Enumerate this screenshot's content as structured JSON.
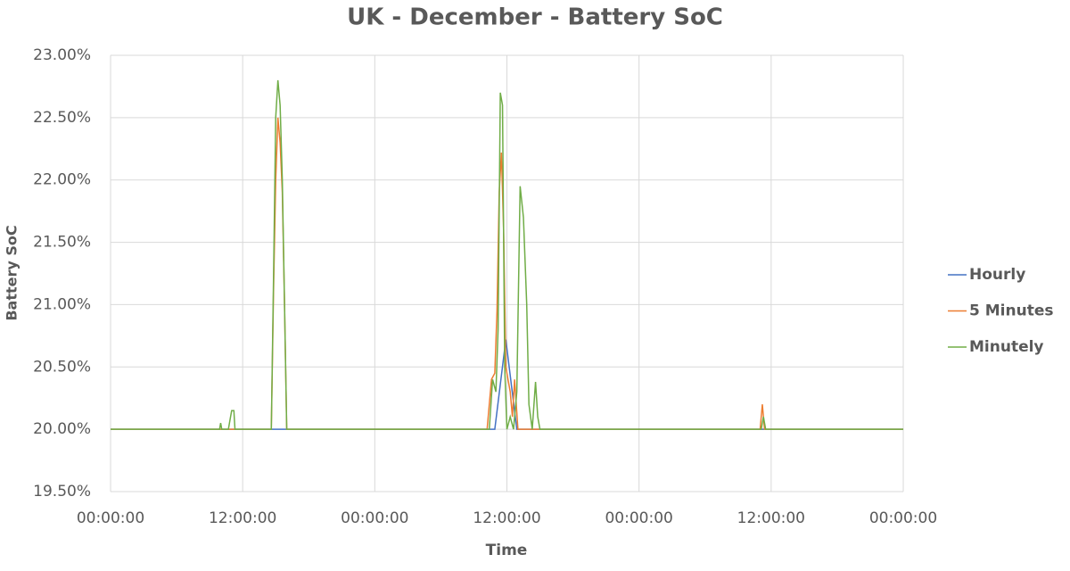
{
  "chart_data": {
    "type": "line",
    "title": "UK - December - Battery SoC",
    "y_label": "Battery SoC",
    "x_label": "Time",
    "xlim": [
      0,
      72
    ],
    "xticks": [
      {
        "value": 0,
        "label": "00:00:00"
      },
      {
        "value": 12,
        "label": "12:00:00"
      },
      {
        "value": 24,
        "label": "00:00:00"
      },
      {
        "value": 36,
        "label": "12:00:00"
      },
      {
        "value": 48,
        "label": "00:00:00"
      },
      {
        "value": 60,
        "label": "12:00:00"
      },
      {
        "value": 72,
        "label": "00:00:00"
      }
    ],
    "ylim": [
      19.5,
      23
    ],
    "yticks": [
      {
        "value": 19.5,
        "label": "19.50%"
      },
      {
        "value": 20,
        "label": "20.00%"
      },
      {
        "value": 20.5,
        "label": "20.50%"
      },
      {
        "value": 21,
        "label": "21.00%"
      },
      {
        "value": 21.5,
        "label": "21.50%"
      },
      {
        "value": 22,
        "label": "22.00%"
      },
      {
        "value": 22.5,
        "label": "22.50%"
      },
      {
        "value": 23,
        "label": "23.00%"
      }
    ],
    "grid": true,
    "legend": "right",
    "series": [
      {
        "name": "Hourly",
        "color": "#4472c4",
        "x": [
          0,
          34.9,
          35.9,
          36.9,
          72
        ],
        "values": [
          20,
          20,
          20.72,
          20,
          20
        ]
      },
      {
        "name": "5 Minutes",
        "color": "#ed7d31",
        "x": [
          0,
          14.6,
          14.8,
          15.0,
          15.2,
          15.4,
          15.6,
          15.8,
          16.0,
          34.2,
          34.6,
          34.9,
          35.1,
          35.3,
          35.5,
          35.7,
          35.9,
          36.1,
          36.3,
          36.5,
          36.7,
          37.0,
          59.0,
          59.2,
          59.4,
          72
        ],
        "values": [
          20,
          20,
          21.1,
          22.0,
          22.5,
          22.3,
          21.9,
          21.0,
          20,
          20,
          20.4,
          20.45,
          20.95,
          21.9,
          22.22,
          21.6,
          20.5,
          20.4,
          20.3,
          20.1,
          20.4,
          20,
          20,
          20.2,
          20,
          20
        ]
      },
      {
        "name": "Minutely",
        "color": "#70ad47",
        "x": [
          0,
          9.9,
          10.0,
          10.1,
          10.7,
          10.9,
          11.0,
          11.2,
          11.3,
          14.6,
          14.8,
          15.0,
          15.2,
          15.4,
          15.6,
          15.8,
          16.0,
          34.4,
          34.7,
          35.0,
          35.2,
          35.4,
          35.6,
          35.8,
          36.0,
          36.3,
          36.6,
          36.9,
          37.2,
          37.5,
          37.8,
          38.0,
          38.3,
          38.6,
          38.8,
          39.0,
          59.1,
          59.3,
          59.5,
          72
        ],
        "values": [
          20,
          20,
          20.05,
          20,
          20,
          20.1,
          20.15,
          20.15,
          20,
          20,
          21.2,
          22.5,
          22.8,
          22.6,
          22.0,
          21.0,
          20,
          20,
          20.4,
          20.3,
          20.8,
          22.7,
          22.6,
          20.5,
          20,
          20.1,
          20,
          20.3,
          21.95,
          21.7,
          21.0,
          20.2,
          20,
          20.38,
          20.1,
          20,
          20,
          20.1,
          20,
          20
        ]
      }
    ]
  }
}
